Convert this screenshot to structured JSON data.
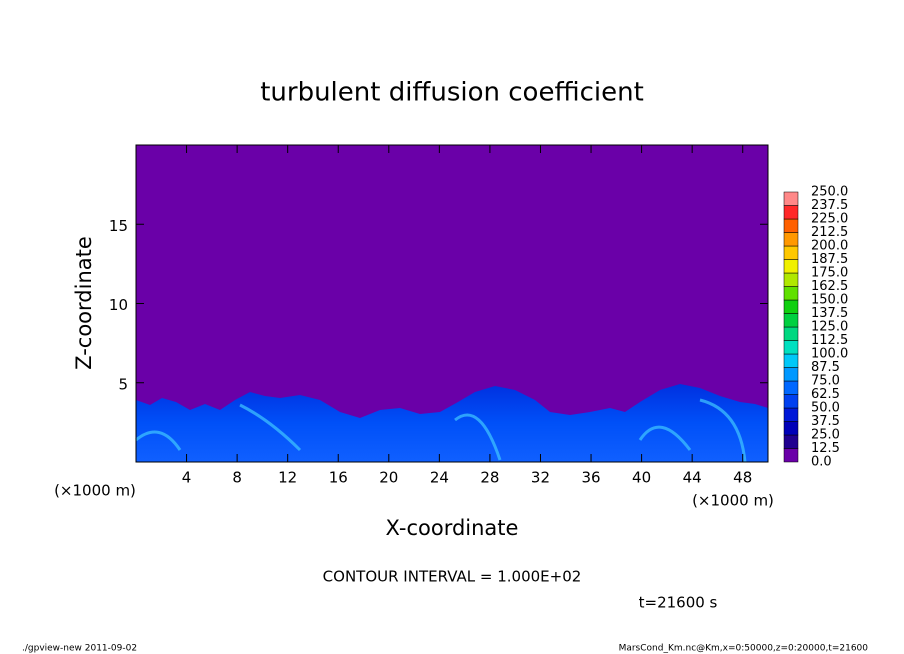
{
  "chart_data": {
    "type": "contour",
    "title": "turbulent diffusion coefficient",
    "xlabel": "X-coordinate",
    "ylabel": "Z-coordinate",
    "xunit": "(×1000 m)",
    "yunit": "(×1000 m)",
    "xlim": [
      0,
      50
    ],
    "ylim": [
      0,
      20
    ],
    "xticks": [
      4,
      8,
      12,
      16,
      20,
      24,
      28,
      32,
      36,
      40,
      44,
      48
    ],
    "yticks": [
      5,
      10,
      15
    ],
    "colorbar": {
      "levels": [
        {
          "value": 0,
          "label": "0.0"
        },
        {
          "value": 12.5,
          "label": "12.5"
        },
        {
          "value": 25,
          "label": "25.0"
        },
        {
          "value": 37.5,
          "label": "37.5"
        },
        {
          "value": 50,
          "label": "50.0"
        },
        {
          "value": 62.5,
          "label": "62.5"
        },
        {
          "value": 75,
          "label": "75.0"
        },
        {
          "value": 87.5,
          "label": "87.5"
        },
        {
          "value": 100,
          "label": "100.0"
        },
        {
          "value": 112.5,
          "label": "112.5"
        },
        {
          "value": 125,
          "label": "125.0"
        },
        {
          "value": 137.5,
          "label": "137.5"
        },
        {
          "value": 150,
          "label": "150.0"
        },
        {
          "value": 162.5,
          "label": "162.5"
        },
        {
          "value": 175,
          "label": "175.0"
        },
        {
          "value": 187.5,
          "label": "187.5"
        },
        {
          "value": 200,
          "label": "200.0"
        },
        {
          "value": 212.5,
          "label": "212.5"
        },
        {
          "value": 225,
          "label": "225.0"
        },
        {
          "value": 237.5,
          "label": "237.5"
        },
        {
          "value": 250,
          "label": "250.0"
        }
      ],
      "colors": [
        "#6a00a8",
        "#200090",
        "#0000b8",
        "#0018d8",
        "#0040f0",
        "#0068ff",
        "#0098ff",
        "#00c8f8",
        "#00e0c0",
        "#00d880",
        "#00d040",
        "#10d010",
        "#60e000",
        "#b0e800",
        "#f0f000",
        "#ffc800",
        "#ff9800",
        "#ff6000",
        "#ff2828",
        "#ff8888"
      ]
    },
    "annotation": "CONTOUR INTERVAL = 1.000E+02",
    "time": "t=21600 s",
    "footer_left": "./gpview-new  2011-09-02",
    "footer_right": "MarsCond_Km.nc@Km,x=0:50000,z=0:20000,t=21600"
  }
}
